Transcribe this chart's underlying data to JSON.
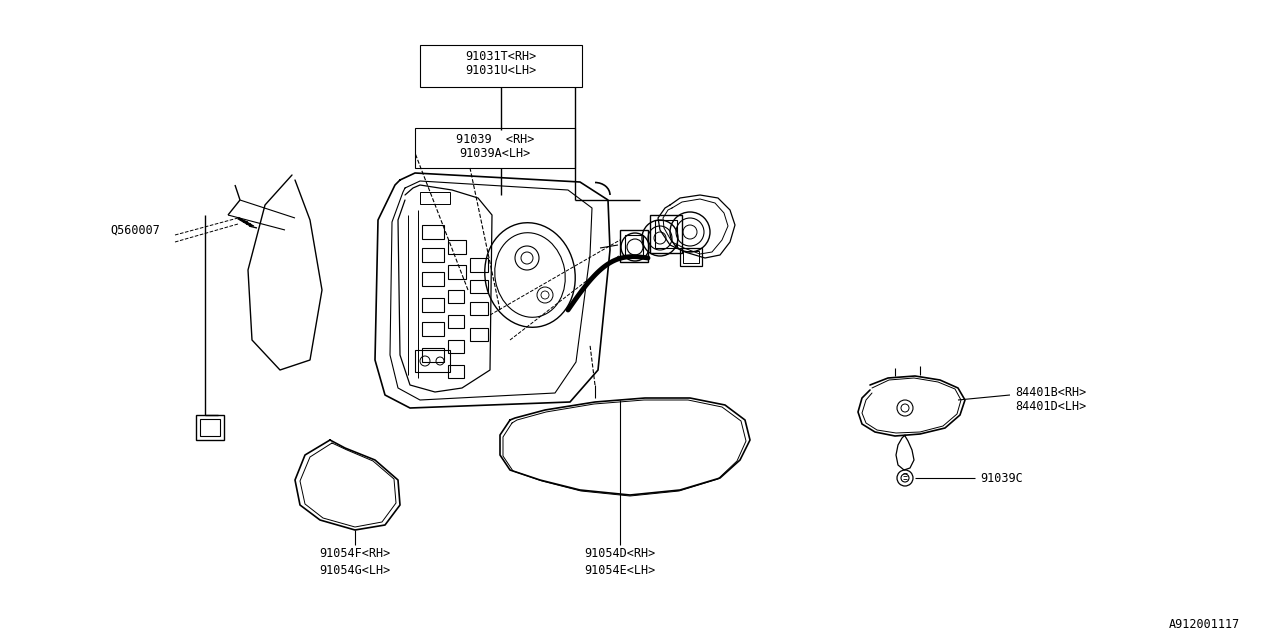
{
  "bg_color": "#ffffff",
  "line_color": "#000000",
  "diagram_id": "A912001117",
  "label_91031": "91031T<RH>\n91031U<LH>",
  "label_91039": "91039 <RH>\n91039A<LH>",
  "label_q560007": "Q560007",
  "label_91054f": "91054F<RH>\n91054G<LH>",
  "label_91054d": "91054D<RH>\n91054E<LH>",
  "label_84401b": "84401B<RH>\n84401D<LH>",
  "label_91039c": "91039C"
}
